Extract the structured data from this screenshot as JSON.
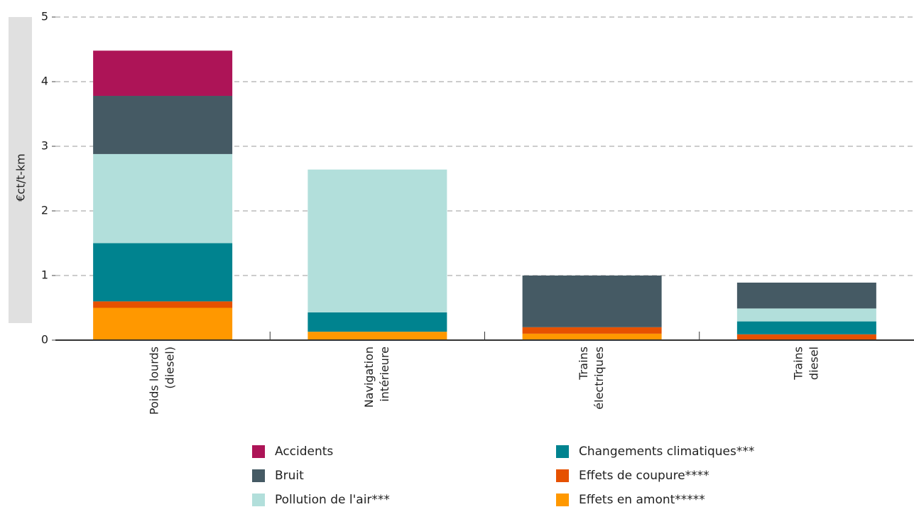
{
  "chart_data": {
    "type": "stacked_bar",
    "y_label": "€ct/t-km",
    "categories": [
      [
        "Poids lourds",
        "(diesel)"
      ],
      [
        "Navigation",
        "intérieure"
      ],
      [
        "Trains",
        "électriques"
      ],
      [
        "Trains",
        "diesel"
      ]
    ],
    "series": [
      {
        "name": "Accidents",
        "color": "#ad1457",
        "values": [
          0.7,
          0,
          0,
          0
        ]
      },
      {
        "name": "Bruit",
        "color": "#455a64",
        "values": [
          0.9,
          0,
          0.8,
          0.4
        ]
      },
      {
        "name": "Pollution de l'air***",
        "color": "#b2dfdb",
        "values": [
          1.38,
          2.21,
          0,
          0.2
        ]
      },
      {
        "name": "Changements climatiques***",
        "color": "#00838f",
        "values": [
          0.9,
          0.3,
          0,
          0.2
        ]
      },
      {
        "name": "Effets de coupure****",
        "color": "#e65100",
        "values": [
          0.1,
          0,
          0.1,
          0.09
        ]
      },
      {
        "name": "Effets en amont*****",
        "color": "#ff9800",
        "values": [
          0.5,
          0.13,
          0.1,
          0
        ]
      }
    ],
    "ylim": [
      0,
      5
    ],
    "yticks": [
      0,
      1,
      2,
      3,
      4,
      5
    ],
    "grid": true
  }
}
